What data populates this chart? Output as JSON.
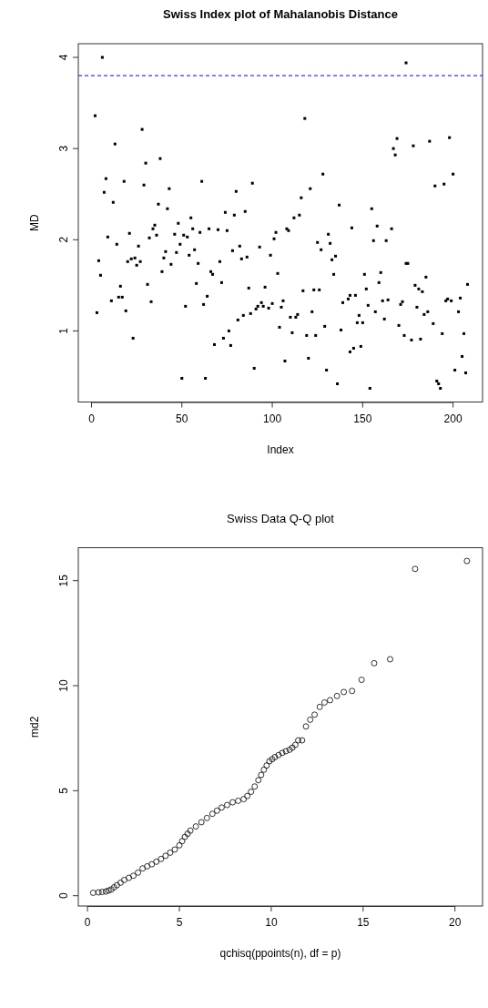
{
  "chart_data": [
    {
      "type": "scatter",
      "title": "Swiss Index plot of Mahalanobis Distance",
      "xlabel": "Index",
      "ylabel": "MD",
      "marker": "square",
      "xlim": [
        -7.3,
        216.3
      ],
      "ylim": [
        0.22,
        4.15
      ],
      "xticks": [
        0,
        50,
        100,
        150,
        200
      ],
      "yticks": [
        1,
        2,
        3,
        4
      ],
      "ref_lines": [
        {
          "axis": "y",
          "value": 3.8,
          "color": "#0000ff",
          "line_style": "dashed"
        }
      ],
      "series": [
        {
          "color": "#000000",
          "x": [
            6,
            2,
            13,
            28,
            30,
            38,
            8,
            18,
            29,
            61,
            89,
            7,
            43,
            80,
            12,
            37,
            42,
            74,
            79,
            85,
            55,
            48,
            35,
            34,
            56,
            65,
            70,
            75,
            60,
            36,
            46,
            51,
            53,
            32,
            9,
            21,
            14,
            26,
            49,
            82,
            93,
            99,
            41,
            47,
            57,
            78,
            4,
            20,
            22,
            24,
            27,
            25,
            40,
            54,
            44,
            59,
            71,
            83,
            86,
            5,
            39,
            66,
            67,
            31,
            58,
            72,
            16,
            87,
            96,
            11,
            15,
            17,
            33,
            3,
            19,
            52,
            62,
            64,
            91,
            94,
            92,
            98,
            100,
            81,
            84,
            88,
            76,
            73,
            23,
            68,
            77,
            90,
            50,
            63,
            95,
            174,
            118,
            169,
            167,
            168,
            178,
            187,
            198,
            128,
            200,
            121,
            190,
            195,
            116,
            137,
            155,
            112,
            115,
            108,
            109,
            102,
            101,
            144,
            158,
            166,
            131,
            125,
            132,
            127,
            156,
            163,
            135,
            133,
            134,
            103,
            174,
            175,
            160,
            151,
            185,
            159,
            152,
            179,
            181,
            183,
            208,
            117,
            123,
            126,
            143,
            142,
            139,
            146,
            161,
            164,
            172,
            171,
            153,
            180,
            196,
            197,
            199,
            204,
            203,
            186,
            184,
            157,
            162,
            122,
            148,
            147,
            150,
            114,
            113,
            110,
            106,
            105,
            104,
            129,
            138,
            170,
            173,
            177,
            182,
            189,
            194,
            206,
            119,
            124,
            111,
            143,
            145,
            149,
            107,
            120,
            130,
            205,
            201,
            207,
            136,
            154,
            191,
            192,
            193
          ],
          "values": [
            4.0,
            3.36,
            3.05,
            3.21,
            2.84,
            2.89,
            2.67,
            2.64,
            2.6,
            2.64,
            2.62,
            2.52,
            2.56,
            2.53,
            2.41,
            2.39,
            2.34,
            2.3,
            2.27,
            2.31,
            2.24,
            2.18,
            2.16,
            2.12,
            2.12,
            2.12,
            2.11,
            2.1,
            2.08,
            2.05,
            2.06,
            2.05,
            2.03,
            2.02,
            2.03,
            2.07,
            1.95,
            1.93,
            1.95,
            1.93,
            1.92,
            1.83,
            1.87,
            1.86,
            1.89,
            1.88,
            1.77,
            1.76,
            1.79,
            1.8,
            1.76,
            1.72,
            1.8,
            1.83,
            1.73,
            1.74,
            1.76,
            1.79,
            1.81,
            1.61,
            1.65,
            1.65,
            1.62,
            1.51,
            1.52,
            1.53,
            1.49,
            1.47,
            1.48,
            1.33,
            1.37,
            1.37,
            1.32,
            1.2,
            1.22,
            1.27,
            1.29,
            1.38,
            1.24,
            1.31,
            1.27,
            1.25,
            1.3,
            1.12,
            1.17,
            1.19,
            1.0,
            0.92,
            0.92,
            0.85,
            0.84,
            0.59,
            0.48,
            0.48,
            1.27,
            3.94,
            3.33,
            3.11,
            3.0,
            2.93,
            3.03,
            3.08,
            3.12,
            2.72,
            2.72,
            2.56,
            2.59,
            2.61,
            2.46,
            2.38,
            2.34,
            2.24,
            2.27,
            2.12,
            2.1,
            2.08,
            2.01,
            2.13,
            2.15,
            2.12,
            2.06,
            1.97,
            1.96,
            1.89,
            1.99,
            1.99,
            1.82,
            1.78,
            1.62,
            1.63,
            1.74,
            1.74,
            1.64,
            1.62,
            1.59,
            1.53,
            1.46,
            1.5,
            1.46,
            1.43,
            1.51,
            1.44,
            1.45,
            1.45,
            1.39,
            1.35,
            1.31,
            1.39,
            1.33,
            1.34,
            1.32,
            1.29,
            1.28,
            1.26,
            1.33,
            1.35,
            1.33,
            1.36,
            1.21,
            1.21,
            1.18,
            1.21,
            1.13,
            1.21,
            1.17,
            1.09,
            1.09,
            1.18,
            1.15,
            1.15,
            1.33,
            1.26,
            1.04,
            1.05,
            1.01,
            1.06,
            0.95,
            0.9,
            0.91,
            1.08,
            0.97,
            0.97,
            0.95,
            0.95,
            0.98,
            0.77,
            0.81,
            0.83,
            0.67,
            0.7,
            0.57,
            0.72,
            0.57,
            0.54,
            0.42,
            0.37,
            0.45,
            0.42,
            0.37
          ]
        }
      ]
    },
    {
      "type": "scatter",
      "title": "Swiss Data  Q-Q plot",
      "xlabel": "qchisq(ppoints(n), df = p)",
      "ylabel": "md2",
      "marker": "circle",
      "xlim": [
        -0.5,
        21.5
      ],
      "ylim": [
        -0.49,
        16.57
      ],
      "xticks": [
        0,
        5,
        10,
        15,
        20
      ],
      "yticks": [
        0,
        5,
        10,
        15
      ],
      "series": [
        {
          "color": "#000000",
          "x": [
            0.31,
            0.6,
            0.8,
            1.0,
            1.15,
            1.3,
            1.45,
            1.6,
            1.8,
            2.0,
            2.25,
            2.5,
            2.75,
            3.0,
            3.25,
            3.5,
            3.75,
            4.0,
            4.25,
            4.5,
            4.75,
            5.0,
            5.15,
            5.3,
            5.45,
            5.6,
            5.9,
            6.2,
            6.5,
            6.8,
            7.05,
            7.3,
            7.6,
            7.9,
            8.2,
            8.5,
            8.7,
            8.9,
            9.1,
            9.3,
            9.45,
            9.6,
            9.75,
            9.9,
            10.05,
            10.2,
            10.4,
            10.6,
            10.8,
            11.0,
            11.15,
            11.31,
            11.47,
            11.68,
            11.89,
            12.12,
            12.36,
            12.64,
            12.9,
            13.2,
            13.58,
            13.95,
            14.4,
            14.92,
            15.6,
            16.47,
            17.83,
            20.65
          ],
          "values": [
            0.14,
            0.16,
            0.18,
            0.2,
            0.25,
            0.3,
            0.4,
            0.5,
            0.62,
            0.75,
            0.85,
            0.95,
            1.1,
            1.3,
            1.4,
            1.5,
            1.62,
            1.75,
            1.9,
            2.05,
            2.2,
            2.4,
            2.6,
            2.8,
            2.95,
            3.1,
            3.3,
            3.5,
            3.7,
            3.9,
            4.05,
            4.2,
            4.32,
            4.45,
            4.52,
            4.6,
            4.75,
            4.95,
            5.2,
            5.5,
            5.75,
            6.0,
            6.2,
            6.4,
            6.5,
            6.6,
            6.7,
            6.8,
            6.88,
            6.95,
            7.05,
            7.18,
            7.4,
            7.4,
            8.06,
            8.38,
            8.62,
            8.99,
            9.2,
            9.31,
            9.51,
            9.7,
            9.75,
            10.28,
            11.07,
            11.26,
            15.56,
            15.94
          ]
        }
      ]
    }
  ]
}
